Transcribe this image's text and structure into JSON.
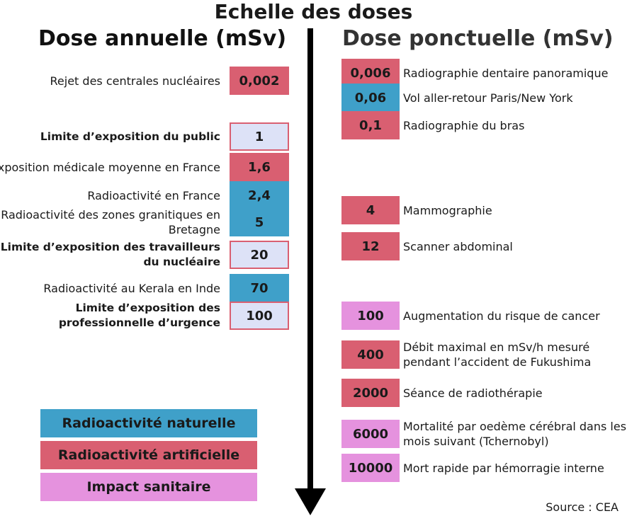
{
  "title": "Echelle des doses",
  "headers": {
    "left": "Dose annuelle (mSv)",
    "right": "Dose ponctuelle (mSv)"
  },
  "colors": {
    "naturelle": "#3fa0c9",
    "artificielle": "#d95f71",
    "sanitaire": "#e592de",
    "limite_fill": "#dde2f7"
  },
  "left_items": [
    {
      "label": "Rejet des centrales nucléaires",
      "value": "0,002",
      "category": "artificielle"
    },
    {
      "label": "Limite d’exposition du public",
      "value": "1",
      "category": "limite"
    },
    {
      "label": "Exposition médicale moyenne en France",
      "value": "1,6",
      "category": "artificielle"
    },
    {
      "label": "Radioactivité en France",
      "value": "2,4",
      "category": "naturelle"
    },
    {
      "label": "Radioactivité des zones granitiques en Bretagne",
      "value": "5",
      "category": "naturelle"
    },
    {
      "label": "Limite d’exposition des travailleurs du nucléaire",
      "value": "20",
      "category": "limite"
    },
    {
      "label": "Radioactivité au Kerala en Inde",
      "value": "70",
      "category": "naturelle"
    },
    {
      "label": "Limite d’exposition des professionnelle d’urgence",
      "value": "100",
      "category": "limite"
    }
  ],
  "right_items": [
    {
      "label": "Radiographie dentaire panoramique",
      "value": "0,006",
      "category": "artificielle"
    },
    {
      "label": "Vol aller-retour Paris/New York",
      "value": "0,06",
      "category": "naturelle"
    },
    {
      "label": "Radiographie du bras",
      "value": "0,1",
      "category": "artificielle"
    },
    {
      "label": "Mammographie",
      "value": "4",
      "category": "artificielle"
    },
    {
      "label": "Scanner abdominal",
      "value": "12",
      "category": "artificielle"
    },
    {
      "label": "Augmentation du risque de cancer",
      "value": "100",
      "category": "sanitaire"
    },
    {
      "label": "Débit maximal en mSv/h mesuré pendant l’accident de Fukushima",
      "value": "400",
      "category": "artificielle"
    },
    {
      "label": "Séance de radiothérapie",
      "value": "2000",
      "category": "artificielle"
    },
    {
      "label": "Mortalité par oedème cérébral dans les mois suivant (Tchernobyl)",
      "value": "6000",
      "category": "sanitaire"
    },
    {
      "label": "Mort rapide par hémorragie interne",
      "value": "10000",
      "category": "sanitaire"
    }
  ],
  "legend": [
    {
      "label": "Radioactivité naturelle",
      "category": "naturelle"
    },
    {
      "label": "Radioactivité artificielle",
      "category": "artificielle"
    },
    {
      "label": "Impact sanitaire",
      "category": "sanitaire"
    }
  ],
  "source": "Source : CEA"
}
